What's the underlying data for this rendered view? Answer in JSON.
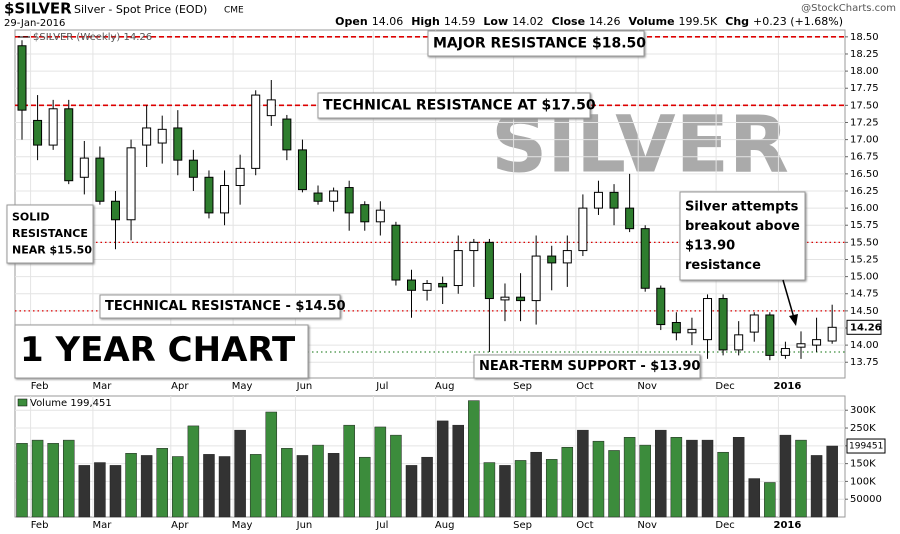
{
  "header": {
    "symbol": "$SILVER",
    "name": "Silver - Spot Price (EOD)",
    "exchange": "CME",
    "date": "29-Jan-2016",
    "quote": [
      {
        "label": "Open",
        "value": "14.06"
      },
      {
        "label": "High",
        "value": "14.59"
      },
      {
        "label": "Low",
        "value": "14.02"
      },
      {
        "label": "Close",
        "value": "14.26"
      },
      {
        "label": "Volume",
        "value": "199.5K"
      },
      {
        "label": "Chg",
        "value": "+0.23 (+1.68%)"
      }
    ],
    "source": "@StockCharts.com"
  },
  "chart_data": [
    {
      "type": "candlestick",
      "legend": "$SILVER (Weekly) 14.26",
      "watermark": "SILVER",
      "categories": [
        null,
        "Feb",
        null,
        null,
        null,
        "Mar",
        null,
        null,
        null,
        null,
        "Apr",
        null,
        null,
        null,
        "May",
        null,
        null,
        null,
        "Jun",
        null,
        null,
        null,
        null,
        "Jul",
        null,
        null,
        null,
        "Aug",
        null,
        null,
        null,
        null,
        "Sep",
        null,
        null,
        null,
        "Oct",
        null,
        null,
        null,
        "Nov",
        null,
        null,
        null,
        null,
        "Dec",
        null,
        null,
        null,
        "2016",
        null,
        null,
        null
      ],
      "open": [
        18.37,
        17.28,
        16.92,
        17.45,
        16.45,
        16.73,
        16.1,
        15.83,
        16.92,
        16.95,
        17.17,
        16.7,
        16.45,
        15.93,
        16.33,
        16.58,
        17.35,
        17.3,
        16.85,
        16.22,
        16.1,
        16.3,
        16.05,
        15.8,
        15.75,
        14.95,
        14.8,
        14.9,
        14.87,
        15.38,
        15.5,
        14.66,
        14.7,
        14.65,
        15.3,
        15.2,
        15.38,
        16.0,
        16.23,
        16.0,
        15.7,
        14.83,
        14.33,
        14.18,
        14.08,
        14.68,
        13.93,
        14.19,
        14.44,
        13.85,
        13.97,
        14.0,
        14.06
      ],
      "high": [
        18.45,
        17.65,
        17.58,
        17.58,
        16.98,
        16.9,
        16.25,
        17.0,
        17.5,
        17.35,
        17.43,
        16.85,
        16.55,
        16.55,
        16.78,
        17.72,
        17.87,
        17.36,
        17.0,
        16.33,
        16.3,
        16.4,
        16.1,
        16.1,
        15.8,
        15.1,
        14.95,
        15.0,
        15.6,
        15.55,
        15.55,
        14.9,
        15.05,
        15.6,
        15.45,
        15.6,
        16.2,
        16.4,
        16.35,
        16.5,
        15.75,
        14.87,
        14.48,
        14.4,
        14.74,
        14.74,
        14.35,
        14.48,
        14.48,
        14.05,
        14.2,
        14.4,
        14.59
      ],
      "low": [
        17.0,
        16.7,
        16.85,
        16.35,
        16.2,
        16.05,
        15.4,
        15.53,
        16.6,
        16.65,
        16.48,
        16.25,
        15.85,
        15.75,
        16.05,
        16.48,
        17.2,
        16.7,
        16.23,
        16.05,
        15.95,
        15.67,
        15.67,
        15.6,
        14.87,
        14.4,
        14.65,
        14.6,
        14.75,
        14.85,
        13.9,
        14.35,
        14.35,
        14.3,
        14.8,
        14.85,
        15.3,
        15.9,
        15.75,
        15.65,
        14.78,
        14.22,
        14.07,
        14.0,
        13.8,
        13.85,
        13.85,
        14.05,
        13.78,
        13.8,
        13.8,
        13.9,
        14.02
      ],
      "close": [
        17.43,
        16.92,
        17.45,
        16.4,
        16.73,
        16.1,
        15.83,
        16.88,
        17.17,
        17.15,
        16.7,
        16.45,
        15.93,
        16.33,
        16.58,
        17.65,
        17.58,
        16.85,
        16.27,
        16.1,
        16.25,
        15.93,
        15.8,
        15.97,
        14.95,
        14.8,
        14.9,
        14.85,
        15.38,
        15.5,
        14.68,
        14.7,
        14.65,
        15.3,
        15.2,
        15.38,
        16.0,
        16.23,
        16.0,
        15.7,
        14.83,
        14.3,
        14.18,
        14.23,
        14.68,
        13.93,
        14.15,
        14.44,
        13.85,
        13.95,
        14.02,
        14.08,
        14.26
      ],
      "down_color": "#2e7d2e",
      "up_color": "#ffffff",
      "ylim": [
        13.52,
        18.6
      ],
      "yticks": [
        13.75,
        {
          "value": 14,
          "label": "14.00"
        },
        14.25,
        {
          "value": 14.5,
          "label": "14.50"
        },
        14.75,
        {
          "value": 15,
          "label": "15.00"
        },
        15.25,
        {
          "value": 15.5,
          "label": "15.50"
        },
        15.75,
        {
          "value": 16,
          "label": "16.00"
        },
        16.25,
        {
          "value": 16.5,
          "label": "16.50"
        },
        16.75,
        {
          "value": 17,
          "label": "17.00"
        },
        17.25,
        {
          "value": 17.5,
          "label": "17.50"
        },
        17.75,
        {
          "value": 18,
          "label": "18.00"
        },
        18.25,
        {
          "value": 18.5,
          "label": "18.50"
        }
      ],
      "grid": true,
      "hlines": [
        {
          "value": 18.5,
          "color": "#dd0000",
          "style": "dashed"
        },
        {
          "value": 17.5,
          "color": "#dd0000",
          "style": "dashed"
        },
        {
          "value": 15.5,
          "color": "#dd0000",
          "style": "dotted"
        },
        {
          "value": 14.5,
          "color": "#dd0000",
          "style": "dotted"
        },
        {
          "value": 13.9,
          "color": "#3c8c3c",
          "style": "dotted"
        }
      ],
      "annotations": [
        {
          "lines": [
            "MAJOR RESISTANCE $18.50"
          ],
          "color": "#dd0000"
        },
        {
          "lines": [
            "TECHNICAL RESISTANCE AT $17.50"
          ],
          "color": "#dd0000"
        },
        {
          "lines": [
            "SOLID",
            "RESISTANCE",
            "NEAR $15.50"
          ],
          "color": "#dd0000"
        },
        {
          "lines": [
            "TECHNICAL RESISTANCE - $14.50"
          ],
          "color": "#dd0000"
        },
        {
          "lines": [
            "1 YEAR CHART"
          ],
          "color": "#000000"
        },
        {
          "lines": [
            "NEAR-TERM SUPPORT - $13.90"
          ],
          "color": "#2e7d2e"
        },
        {
          "lines": [
            "Silver attempts",
            "breakout above",
            "$13.90",
            "resistance"
          ],
          "color": "#2e7d2e"
        }
      ]
    },
    {
      "type": "bar",
      "legend": "Volume 199,451",
      "values": [
        207000,
        216000,
        207000,
        216000,
        145000,
        153000,
        145000,
        179000,
        173000,
        193000,
        170000,
        256000,
        176000,
        170000,
        244000,
        176000,
        295000,
        193000,
        173000,
        202000,
        179000,
        258000,
        168000,
        253000,
        230000,
        145000,
        168000,
        270000,
        258000,
        327000,
        153000,
        145000,
        159000,
        182000,
        162000,
        196000,
        244000,
        213000,
        187000,
        224000,
        202000,
        244000,
        224000,
        216000,
        216000,
        182000,
        224000,
        108000,
        97000,
        230000,
        216000,
        173000,
        199451
      ],
      "colors": [
        "#3c8c3c",
        "#3c8c3c",
        "#3c8c3c",
        "#3c8c3c",
        "#333333",
        "#333333",
        "#333333",
        "#3c8c3c",
        "#333333",
        "#3c8c3c",
        "#3c8c3c",
        "#3c8c3c",
        "#333333",
        "#333333",
        "#333333",
        "#3c8c3c",
        "#3c8c3c",
        "#3c8c3c",
        "#333333",
        "#3c8c3c",
        "#333333",
        "#3c8c3c",
        "#3c8c3c",
        "#3c8c3c",
        "#3c8c3c",
        "#333333",
        "#333333",
        "#333333",
        "#333333",
        "#3c8c3c",
        "#3c8c3c",
        "#333333",
        "#3c8c3c",
        "#333333",
        "#3c8c3c",
        "#3c8c3c",
        "#333333",
        "#3c8c3c",
        "#3c8c3c",
        "#3c8c3c",
        "#3c8c3c",
        "#333333",
        "#3c8c3c",
        "#333333",
        "#333333",
        "#3c8c3c",
        "#333333",
        "#333333",
        "#3c8c3c",
        "#333333",
        "#3c8c3c",
        "#333333",
        "#333333"
      ],
      "ylim": [
        0,
        340000
      ],
      "yticks": [
        50000,
        {
          "value": 100000,
          "label": "100K"
        },
        {
          "value": 150000,
          "label": "150K"
        },
        {
          "value": 200000,
          "label": "200K"
        },
        {
          "value": 250000,
          "label": "250K"
        },
        {
          "value": 300000,
          "label": "300K"
        }
      ],
      "grid": true
    }
  ]
}
